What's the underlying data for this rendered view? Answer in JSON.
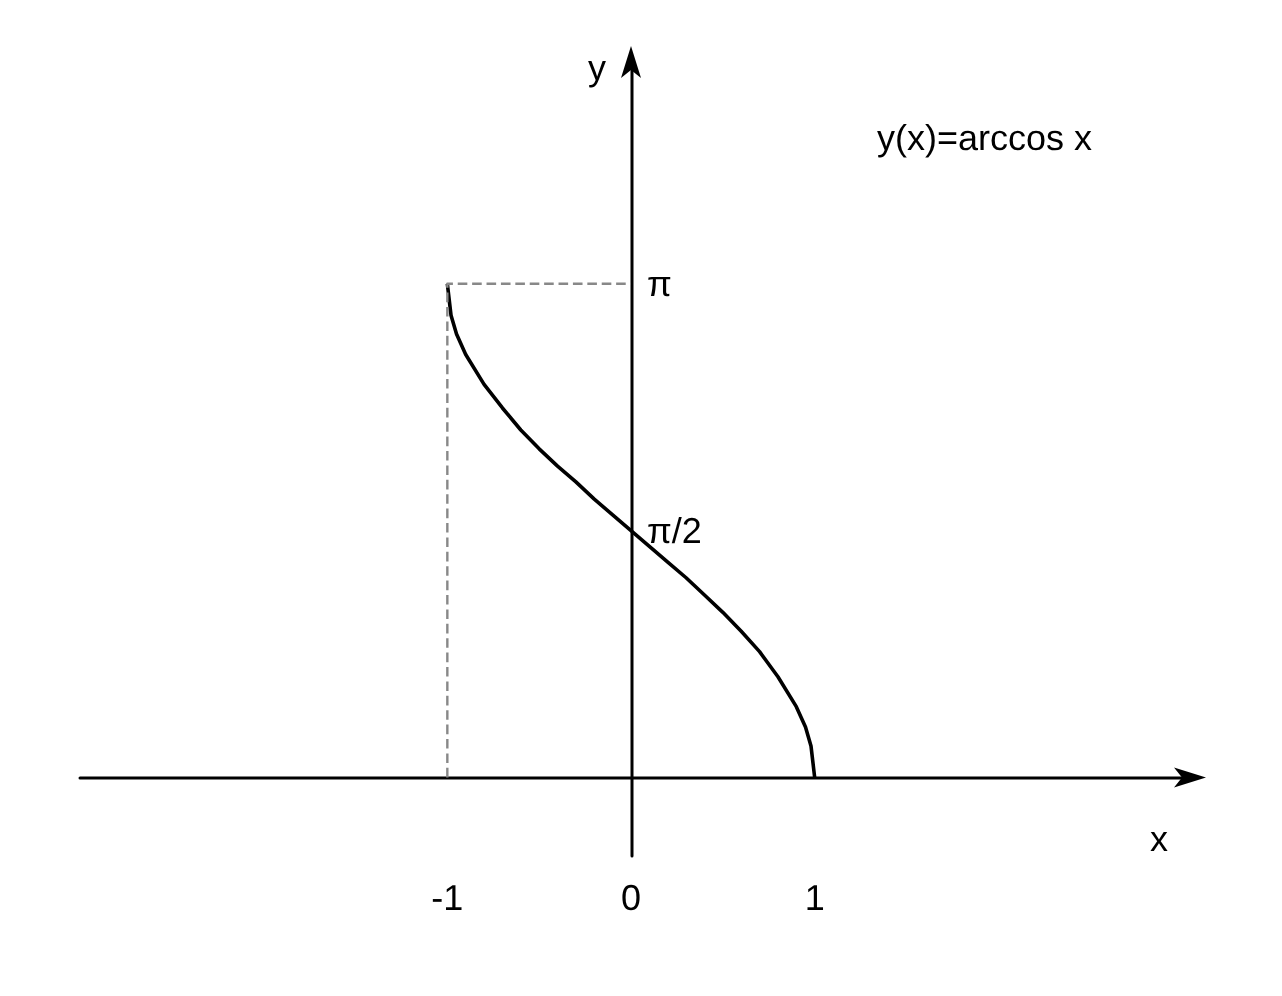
{
  "chart_data": {
    "type": "line",
    "xlabel": "x",
    "ylabel": "y",
    "annotations": [
      "y(x)=arccos x"
    ],
    "series": [
      {
        "color": "#000000",
        "line_style": "solid",
        "x": [
          -1,
          -0.98,
          -0.95,
          -0.9,
          -0.8,
          -0.7,
          -0.6,
          -0.5,
          -0.4,
          -0.3,
          -0.2,
          -0.1,
          0,
          0.1,
          0.2,
          0.3,
          0.4,
          0.5,
          0.6,
          0.7,
          0.8,
          0.9,
          0.95,
          0.98,
          1
        ],
        "values": [
          3.14,
          2.94,
          2.82,
          2.69,
          2.5,
          2.35,
          2.21,
          2.09,
          1.98,
          1.88,
          1.77,
          1.67,
          1.57,
          1.47,
          1.37,
          1.27,
          1.16,
          1.05,
          0.93,
          0.8,
          0.64,
          0.45,
          0.32,
          0.2,
          0
        ]
      },
      {
        "color": "#888888",
        "line_style": "dashed",
        "x": [
          -1,
          -1,
          0
        ],
        "values": [
          0,
          3.14,
          3.14
        ]
      }
    ],
    "xlim": [
      -3,
      3
    ],
    "ylim": [
      -0.5,
      4.5
    ],
    "xticks": [
      -1,
      0,
      1
    ],
    "yticks": [
      {
        "value": 1.57,
        "label": "π/2"
      },
      {
        "value": 3.14,
        "label": "π"
      }
    ],
    "grid": false,
    "marker": "none"
  }
}
